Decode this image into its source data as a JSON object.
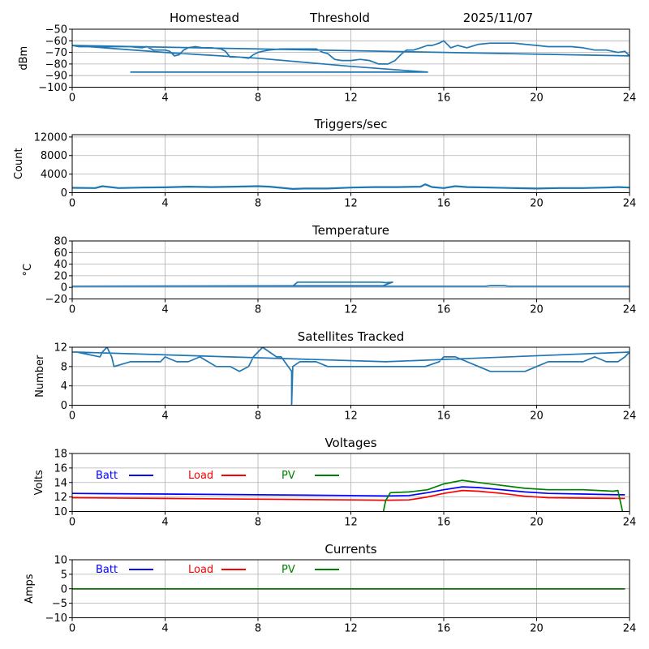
{
  "header": {
    "site": "Homestead",
    "mode": "Threshold",
    "date": "2025/11/07"
  },
  "chart_data": [
    {
      "id": "signal",
      "type": "line",
      "title": "",
      "xlabel": "",
      "ylabel": "dBm",
      "xlim": [
        0,
        24
      ],
      "ylim": [
        -100,
        -50
      ],
      "xticks": [
        0,
        4,
        8,
        12,
        16,
        20,
        24
      ],
      "yticks": [
        -100,
        -90,
        -80,
        -70,
        -60,
        -50
      ],
      "ytick_labels": [
        "−100",
        "−90",
        "−80",
        "−70",
        "−60",
        "−50"
      ],
      "grid": true,
      "series": [
        {
          "name": "dBm",
          "color": "#1f77b4",
          "x": [
            0,
            0.3,
            1.2,
            2.5,
            3.0,
            3.2,
            3.5,
            4.0,
            4.2,
            4.4,
            4.6,
            4.8,
            5.0,
            5.3,
            5.6,
            6.0,
            6.4,
            6.6,
            6.8,
            7.2,
            7.6,
            7.8,
            8.0,
            8.2,
            8.5,
            9.0,
            9.5,
            10.0,
            10.5,
            10.8,
            11.0,
            11.3,
            11.6,
            12.0,
            12.4,
            12.8,
            13.2,
            13.6,
            13.9,
            14.2,
            14.4,
            14.7,
            15.0,
            15.3,
            15.5,
            15.8,
            16.0,
            16.3,
            16.6,
            17.0,
            17.5,
            18.0,
            18.5,
            19.0,
            19.5,
            20.0,
            20.5,
            21.0,
            21.5,
            22.0,
            22.5,
            23.0,
            23.5,
            23.8,
            24.0,
            0.0,
            4.0,
            8.0,
            12.0,
            15.3,
            12.0,
            8.0,
            4.0,
            2.5
          ],
          "y": [
            -64,
            -65,
            -65,
            -65,
            -66,
            -65,
            -68,
            -68,
            -69,
            -73,
            -72,
            -68,
            -66,
            -65,
            -66,
            -66,
            -67,
            -69,
            -74,
            -74,
            -75,
            -72,
            -70,
            -69,
            -68,
            -67,
            -67,
            -67,
            -67,
            -70,
            -71,
            -76,
            -77,
            -77,
            -76,
            -77,
            -80,
            -80,
            -77,
            -71,
            -68,
            -68,
            -66,
            -64,
            -64,
            -62,
            -60,
            -66,
            -64,
            -66,
            -63,
            -62,
            -62,
            -62,
            -63,
            -64,
            -65,
            -65,
            -65,
            -66,
            -68,
            -68,
            -70,
            -69,
            -73,
            -64,
            -70,
            -75,
            -82,
            -87,
            -87,
            -87,
            -87,
            -87
          ]
        }
      ]
    },
    {
      "id": "triggers",
      "type": "line",
      "title": "Triggers/sec",
      "xlabel": "",
      "ylabel": "Count",
      "xlim": [
        0,
        24
      ],
      "ylim": [
        0,
        12500
      ],
      "xticks": [
        0,
        4,
        8,
        12,
        16,
        20,
        24
      ],
      "yticks": [
        0,
        4000,
        8000,
        12000
      ],
      "ytick_labels": [
        "0",
        "4000",
        "8000",
        "12000"
      ],
      "grid": true,
      "series": [
        {
          "name": "Count",
          "color": "#1f77b4",
          "x": [
            0,
            1,
            1.3,
            2,
            3,
            4,
            5,
            6,
            7,
            8,
            8.5,
            9.5,
            10,
            11,
            12,
            13,
            14,
            15,
            15.2,
            15.5,
            16,
            16.5,
            17,
            18,
            19,
            20,
            21,
            22,
            23,
            23.5,
            24
          ],
          "y": [
            1050,
            1000,
            1400,
            1000,
            1100,
            1150,
            1300,
            1200,
            1300,
            1400,
            1300,
            800,
            900,
            900,
            1100,
            1200,
            1200,
            1300,
            1800,
            1200,
            1000,
            1400,
            1200,
            1100,
            1000,
            900,
            1000,
            1000,
            1100,
            1200,
            1100
          ]
        }
      ]
    },
    {
      "id": "temperature",
      "type": "line",
      "title": "Temperature",
      "xlabel": "",
      "ylabel": "°C",
      "xlim": [
        0,
        24
      ],
      "ylim": [
        -20,
        80
      ],
      "xticks": [
        0,
        4,
        8,
        12,
        16,
        20,
        24
      ],
      "yticks": [
        -20,
        0,
        20,
        40,
        60,
        80
      ],
      "ytick_labels": [
        "−20",
        "0",
        "20",
        "40",
        "60",
        "80"
      ],
      "grid": true,
      "series": [
        {
          "name": "Temperature",
          "color": "#1f77b4",
          "x": [
            0,
            9.5,
            9.7,
            13.3,
            13.5,
            13.8,
            13.4,
            0,
            9.5,
            15.3,
            15.5,
            17.8,
            18.0,
            18.6,
            18.8,
            24
          ],
          "y": [
            2,
            2,
            9,
            9,
            8,
            9,
            3,
            2,
            2,
            2,
            2,
            2,
            3,
            3,
            2,
            2
          ]
        }
      ]
    },
    {
      "id": "satellites",
      "type": "line",
      "title": "Satellites Tracked",
      "xlabel": "",
      "ylabel": "Number",
      "xlim": [
        0,
        24
      ],
      "ylim": [
        0,
        12
      ],
      "xticks": [
        0,
        4,
        8,
        12,
        16,
        20,
        24
      ],
      "yticks": [
        0,
        4,
        8,
        12
      ],
      "ytick_labels": [
        "0",
        "4",
        "8",
        "12"
      ],
      "grid": true,
      "series": [
        {
          "name": "Satellites",
          "color": "#1f77b4",
          "x": [
            0,
            0.2,
            1.2,
            1.3,
            1.5,
            1.7,
            1.8,
            2.5,
            3.0,
            3.8,
            4.0,
            4.5,
            5.0,
            5.5,
            6.2,
            6.8,
            7.2,
            7.6,
            7.8,
            8.0,
            8.2,
            8.5,
            8.8,
            9.0,
            9.3,
            9.45,
            9.45,
            9.5,
            9.8,
            10.0,
            10.5,
            11.0,
            11.5,
            12.0,
            12.5,
            13.0,
            13.5,
            14.0,
            14.5,
            15.0,
            15.2,
            15.8,
            16.0,
            16.5,
            17.0,
            17.5,
            18.0,
            18.5,
            19.0,
            19.5,
            20.0,
            20.5,
            21.0,
            21.5,
            22.0,
            22.5,
            23.0,
            23.5,
            23.8,
            24.0,
            13.5,
            0.2
          ],
          "y": [
            11,
            11,
            10,
            11,
            12,
            10,
            8,
            9,
            9,
            9,
            10,
            9,
            9,
            10,
            8,
            8,
            7,
            8,
            10,
            11,
            12,
            11,
            10,
            10,
            8,
            7,
            0,
            8,
            9,
            9,
            9,
            8,
            8,
            8,
            8,
            8,
            8,
            8,
            8,
            8,
            8,
            9,
            10,
            10,
            9,
            8,
            7,
            7,
            7,
            7,
            8,
            9,
            9,
            9,
            9,
            10,
            9,
            9,
            10,
            11,
            9,
            11
          ]
        }
      ]
    },
    {
      "id": "voltages",
      "type": "line",
      "title": "Voltages",
      "xlabel": "",
      "ylabel": "Volts",
      "xlim": [
        0,
        24
      ],
      "ylim": [
        10,
        18
      ],
      "xticks": [
        0,
        4,
        8,
        12,
        16,
        20,
        24
      ],
      "yticks": [
        10,
        12,
        14,
        16,
        18
      ],
      "ytick_labels": [
        "10",
        "12",
        "14",
        "16",
        "18"
      ],
      "grid": true,
      "legend": {
        "placement": "top-left",
        "entries": [
          "Batt",
          "Load",
          "PV"
        ]
      },
      "series": [
        {
          "name": "Batt",
          "color": "#0000ff",
          "x": [
            0,
            4,
            8,
            12,
            13.5,
            14.5,
            15.3,
            16.0,
            16.8,
            17.5,
            18.5,
            19.5,
            20.5,
            22,
            23.5,
            23.8
          ],
          "y": [
            12.5,
            12.4,
            12.3,
            12.2,
            12.15,
            12.2,
            12.6,
            13.0,
            13.4,
            13.3,
            13.0,
            12.7,
            12.5,
            12.4,
            12.3,
            12.3
          ]
        },
        {
          "name": "Load",
          "color": "#ff0000",
          "x": [
            0,
            4,
            8,
            12,
            13.5,
            14.5,
            15.3,
            16.0,
            16.8,
            17.5,
            18.5,
            19.5,
            20.5,
            22,
            23.5,
            23.8
          ],
          "y": [
            11.9,
            11.8,
            11.7,
            11.6,
            11.55,
            11.6,
            12.0,
            12.5,
            12.9,
            12.8,
            12.5,
            12.1,
            11.9,
            11.85,
            11.8,
            11.8
          ]
        },
        {
          "name": "PV",
          "color": "#008000",
          "x": [
            13.4,
            13.5,
            13.7,
            14.5,
            15.3,
            16.0,
            16.8,
            17.5,
            18.5,
            19.5,
            20.5,
            22,
            23.3,
            23.5,
            23.7
          ],
          "y": [
            10.0,
            11.5,
            12.6,
            12.7,
            13.0,
            13.8,
            14.3,
            14.0,
            13.6,
            13.2,
            13.0,
            13.0,
            12.8,
            12.9,
            10.0
          ]
        }
      ]
    },
    {
      "id": "currents",
      "type": "line",
      "title": "Currents",
      "xlabel": "",
      "ylabel": "Amps",
      "xlim": [
        0,
        24
      ],
      "ylim": [
        -10,
        10
      ],
      "xticks": [
        0,
        4,
        8,
        12,
        16,
        20,
        24
      ],
      "yticks": [
        -10,
        -5,
        0,
        5,
        10
      ],
      "ytick_labels": [
        "−10",
        "−5",
        "0",
        "5",
        "10"
      ],
      "grid": true,
      "legend": {
        "placement": "top-left",
        "entries": [
          "Batt",
          "Load",
          "PV"
        ]
      },
      "series": [
        {
          "name": "Batt",
          "color": "#0000ff",
          "x": [
            0,
            23.8
          ],
          "y": [
            0,
            0
          ]
        },
        {
          "name": "Load",
          "color": "#ff0000",
          "x": [
            0,
            23.8
          ],
          "y": [
            0,
            0
          ]
        },
        {
          "name": "PV",
          "color": "#008000",
          "x": [
            0,
            23.8
          ],
          "y": [
            0,
            0
          ]
        }
      ]
    }
  ]
}
